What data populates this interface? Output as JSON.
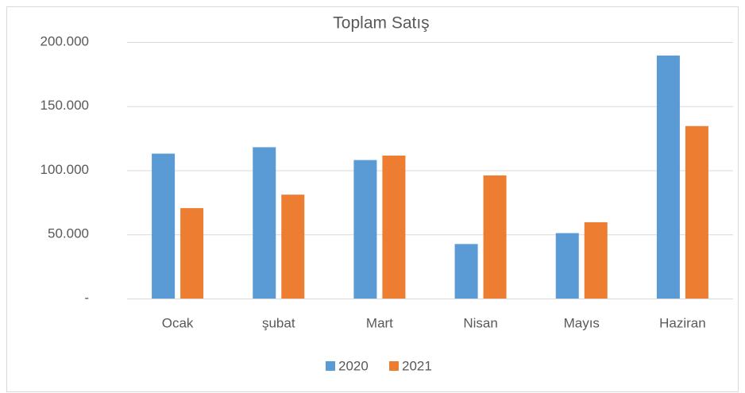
{
  "chart_data": {
    "type": "bar",
    "title": "Toplam Satış",
    "categories": [
      "Ocak",
      "şubat",
      "Mart",
      "Nisan",
      "Mayıs",
      "Haziran"
    ],
    "series": [
      {
        "name": "2020",
        "color": "#5b9bd5",
        "values": [
          113000,
          118000,
          108000,
          42500,
          51000,
          189500
        ]
      },
      {
        "name": "2021",
        "color": "#ed7d31",
        "values": [
          70500,
          81000,
          111500,
          96000,
          59500,
          134500
        ]
      }
    ],
    "ylim": [
      0,
      200000
    ],
    "yticks": [
      {
        "value": 0,
        "label": "-"
      },
      {
        "value": 50000,
        "label": "50.000"
      },
      {
        "value": 100000,
        "label": "100.000"
      },
      {
        "value": 150000,
        "label": "150.000"
      },
      {
        "value": 200000,
        "label": "200.000"
      }
    ],
    "grid": true,
    "legend": "bottom"
  }
}
